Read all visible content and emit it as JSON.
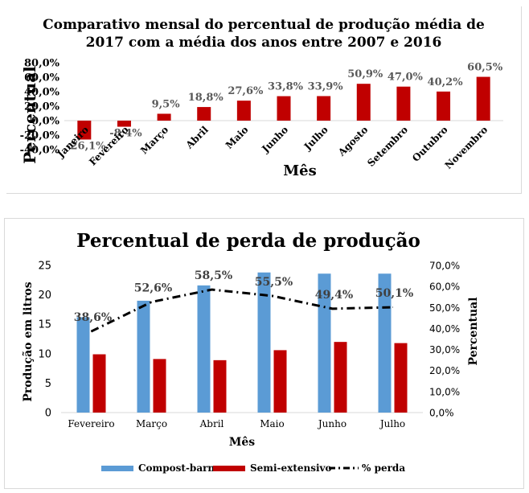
{
  "chart_data": [
    {
      "type": "bar",
      "title": "Comparativo mensal do percentual de produção média de 2017 com a média dos anos entre 2007 e 2016",
      "title_lines": [
        "Comparativo mensal do percentual de produção média de",
        "2017 com a média dos anos entre 2007 e 2016"
      ],
      "xlabel": "Mês",
      "ylabel": "Percentual",
      "ylim": [
        -40,
        80
      ],
      "yticks": [
        "-40,0%",
        "-20,0%",
        "0,0%",
        "20,0%",
        "40,0%",
        "60,0%",
        "80,0%"
      ],
      "ytick_values": [
        -40,
        -20,
        0,
        20,
        40,
        60,
        80
      ],
      "categories": [
        "Janeiro",
        "Fevereiro",
        "Março",
        "Abril",
        "Maio",
        "Junho",
        "Julho",
        "Agosto",
        "Setembro",
        "Outubro",
        "Novembro"
      ],
      "values": [
        -26.1,
        -8.4,
        9.5,
        18.8,
        27.6,
        33.8,
        33.9,
        50.9,
        47.0,
        40.2,
        60.5
      ],
      "data_labels": [
        "-26,1%",
        "-8,4%",
        "9,5%",
        "18,8%",
        "27,6%",
        "33,8%",
        "33,9%",
        "50,9%",
        "47,0%",
        "40,2%",
        "60,5%"
      ],
      "bar_color": "#C00000",
      "grid": false,
      "legend": "none"
    },
    {
      "type": "bar",
      "title": "Percentual de perda de produção",
      "xlabel": "Mês",
      "ylabel": "Produção em litros",
      "y2label": "Percentual",
      "ylim": [
        0,
        25
      ],
      "yticks": [
        "0",
        "5",
        "10",
        "15",
        "20",
        "25"
      ],
      "ytick_values": [
        0,
        5,
        10,
        15,
        20,
        25
      ],
      "y2lim": [
        0,
        70
      ],
      "y2ticks": [
        "0,0%",
        "10,0%",
        "20,0%",
        "30,0%",
        "40,0%",
        "50,0%",
        "60,0%",
        "70,0%"
      ],
      "y2tick_values": [
        0,
        10,
        20,
        30,
        40,
        50,
        60,
        70
      ],
      "categories": [
        "Fevereiro",
        "Março",
        "Abril",
        "Maio",
        "Junho",
        "Julho"
      ],
      "series": [
        {
          "name": "Compost-barn",
          "type": "bar",
          "axis": "left",
          "color": "#5B9BD5",
          "values": [
            16.2,
            19.0,
            21.6,
            23.8,
            23.6,
            23.6
          ]
        },
        {
          "name": "Semi-extensivo",
          "type": "bar",
          "axis": "left",
          "color": "#C00000",
          "values": [
            9.9,
            9.1,
            8.9,
            10.6,
            12.0,
            11.8
          ]
        },
        {
          "name": "% perda",
          "type": "line",
          "axis": "right",
          "color": "#000000",
          "values": [
            38.6,
            52.6,
            58.5,
            55.5,
            49.4,
            50.1
          ],
          "data_labels": [
            "38,6%",
            "52,6%",
            "58,5%",
            "55,5%",
            "49,4%",
            "50,1%"
          ]
        }
      ],
      "grid": false,
      "legend": "bottom"
    }
  ]
}
